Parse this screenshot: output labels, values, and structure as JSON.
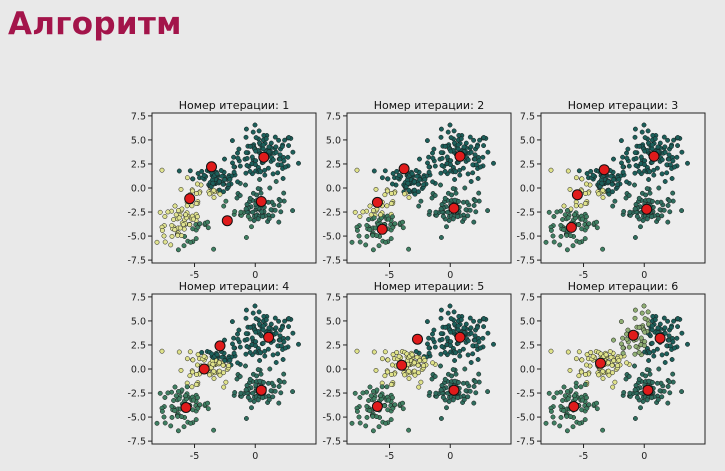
{
  "slide": {
    "title": "Алгоритм"
  },
  "colors": {
    "title": "#a3144a",
    "cluster_dark": "#1c5f5a",
    "cluster_mid": "#3f7f62",
    "cluster_light": "#dfe28a",
    "centroid": "#e01b1b"
  },
  "chart_data": {
    "type": "scatter",
    "description_of_layout": "2x3 grid of scatter subplots",
    "xlim": [
      -8.5,
      5
    ],
    "ylim": [
      -7.8,
      7.8
    ],
    "x_ticks": [
      -5,
      0
    ],
    "x_tick_labels": [
      "-5",
      "0"
    ],
    "y_ticks": [
      7.5,
      5.0,
      2.5,
      0.0,
      -2.5,
      -5.0,
      -7.5
    ],
    "y_tick_labels": [
      "7.5",
      "5.0",
      "2.5",
      "0.0",
      "-2.5",
      "-5.0",
      "-7.5"
    ],
    "blobs": [
      {
        "center": [
          0.8,
          3.3
        ],
        "spread": [
          1.3,
          1.3
        ],
        "n": 110
      },
      {
        "center": [
          -3.5,
          0.7
        ],
        "spread": [
          1.2,
          1.0
        ],
        "n": 90
      },
      {
        "center": [
          0.3,
          -2.1
        ],
        "spread": [
          1.0,
          0.9
        ],
        "n": 75
      },
      {
        "center": [
          -5.9,
          -3.8
        ],
        "spread": [
          1.1,
          1.0
        ],
        "n": 75
      }
    ],
    "subplots": [
      {
        "title": "Номер итерации: 1",
        "centroids": [
          [
            -3.6,
            2.2
          ],
          [
            -5.4,
            -1.1
          ],
          [
            -2.3,
            -3.4
          ],
          [
            0.7,
            3.2
          ],
          [
            0.5,
            -1.4
          ]
        ],
        "colors": [
          "#1c5f5a",
          "#e0e390",
          "#3f7f62",
          "#1c5f5a",
          "#2f6d5e"
        ]
      },
      {
        "title": "Номер итерации: 2",
        "centroids": [
          [
            -3.8,
            2.0
          ],
          [
            -6.0,
            -1.5
          ],
          [
            -5.6,
            -4.3
          ],
          [
            0.8,
            3.3
          ],
          [
            0.3,
            -2.1
          ]
        ],
        "colors": [
          "#1c5f5a",
          "#dfe28a",
          "#3f7f62",
          "#1c5f5a",
          "#2f6d5e"
        ]
      },
      {
        "title": "Номер итерации: 3",
        "centroids": [
          [
            -3.3,
            1.9
          ],
          [
            -5.5,
            -0.7
          ],
          [
            -6.0,
            -4.1
          ],
          [
            0.8,
            3.3
          ],
          [
            0.2,
            -2.2
          ]
        ],
        "colors": [
          "#1c5f5a",
          "#dfe28a",
          "#3f7f62",
          "#1c5f5a",
          "#2f6d5e"
        ]
      },
      {
        "title": "Номер итерации: 4",
        "centroids": [
          [
            -2.9,
            2.4
          ],
          [
            -4.2,
            0.0
          ],
          [
            -5.7,
            -4.0
          ],
          [
            1.1,
            3.3
          ],
          [
            0.5,
            -2.2
          ]
        ],
        "colors": [
          "#1c5f5a",
          "#dfe28a",
          "#3f7f62",
          "#1c5f5a",
          "#2f6d5e"
        ]
      },
      {
        "title": "Номер итерации: 5",
        "centroids": [
          [
            -2.7,
            3.1
          ],
          [
            -4.0,
            0.4
          ],
          [
            -6.0,
            -3.9
          ],
          [
            0.8,
            3.3
          ],
          [
            0.3,
            -2.2
          ]
        ],
        "colors": [
          "#1c5f5a",
          "#dfe28a",
          "#3f7f62",
          "#1c5f5a",
          "#2f6d5e"
        ]
      },
      {
        "title": "Номер итерации: 6",
        "centroids": [
          [
            -0.9,
            3.5
          ],
          [
            -3.6,
            0.6
          ],
          [
            -5.8,
            -3.9
          ],
          [
            1.3,
            3.2
          ],
          [
            0.3,
            -2.2
          ]
        ],
        "colors": [
          "#8fae74",
          "#dfe28a",
          "#3f7f62",
          "#1c5f5a",
          "#2f6d5e"
        ]
      }
    ]
  }
}
